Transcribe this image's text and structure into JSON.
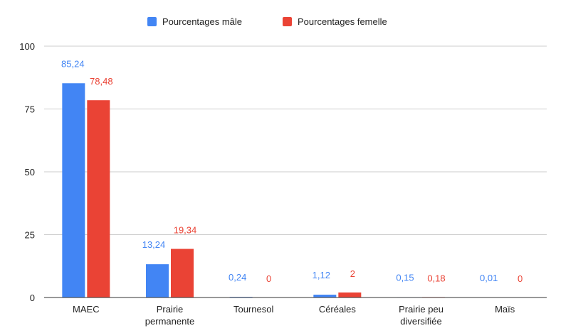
{
  "chart_data": {
    "type": "bar",
    "categories": [
      [
        "MAEC"
      ],
      [
        "Prairie",
        "permanente"
      ],
      [
        "Tournesol"
      ],
      [
        "Céréales"
      ],
      [
        "Prairie peu",
        "diversifiée"
      ],
      [
        "Maïs"
      ]
    ],
    "series": [
      {
        "name": "Pourcentages mâle",
        "color": "#4285f4",
        "values": [
          85.24,
          13.24,
          0.24,
          1.12,
          0.15,
          0.01
        ],
        "labels": [
          "85,24",
          "13,24",
          "0,24",
          "1,12",
          "0,15",
          "0,01"
        ]
      },
      {
        "name": "Pourcentages femelle",
        "color": "#ea4335",
        "values": [
          78.48,
          19.34,
          0,
          2,
          0.18,
          0
        ],
        "labels": [
          "78,48",
          "19,34",
          "0",
          "2",
          "0,18",
          "0"
        ]
      }
    ],
    "yticks": [
      "0",
      "25",
      "50",
      "75",
      "100"
    ],
    "ylim": [
      0,
      100
    ],
    "grid": true,
    "legend_position": "top"
  }
}
